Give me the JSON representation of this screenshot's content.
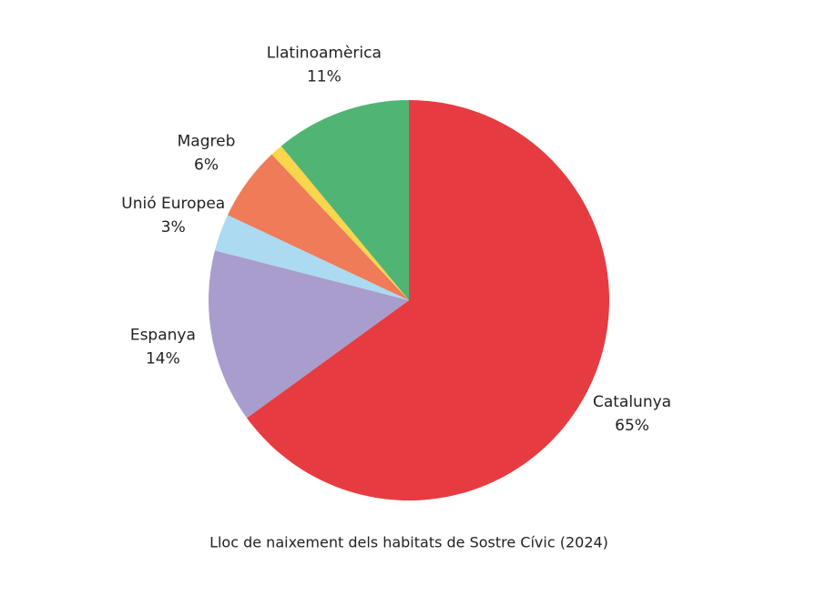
{
  "chart_data": {
    "type": "pie",
    "title": "Lloc de naixement dels habitats de Sostre Cívic (2024)",
    "categories": [
      "Catalunya",
      "Espanya",
      "Unió Europea",
      "Magreb",
      null,
      "Llatinoamèrica"
    ],
    "values": [
      65,
      14,
      3,
      6,
      1,
      11
    ],
    "value_labels": [
      "65%",
      "14%",
      "3%",
      "6%",
      null,
      "11%"
    ],
    "colors": [
      "#e63c41",
      "#a89dcd",
      "#acdaf0",
      "#ef7b58",
      "#fbd54c",
      "#50b574"
    ]
  }
}
